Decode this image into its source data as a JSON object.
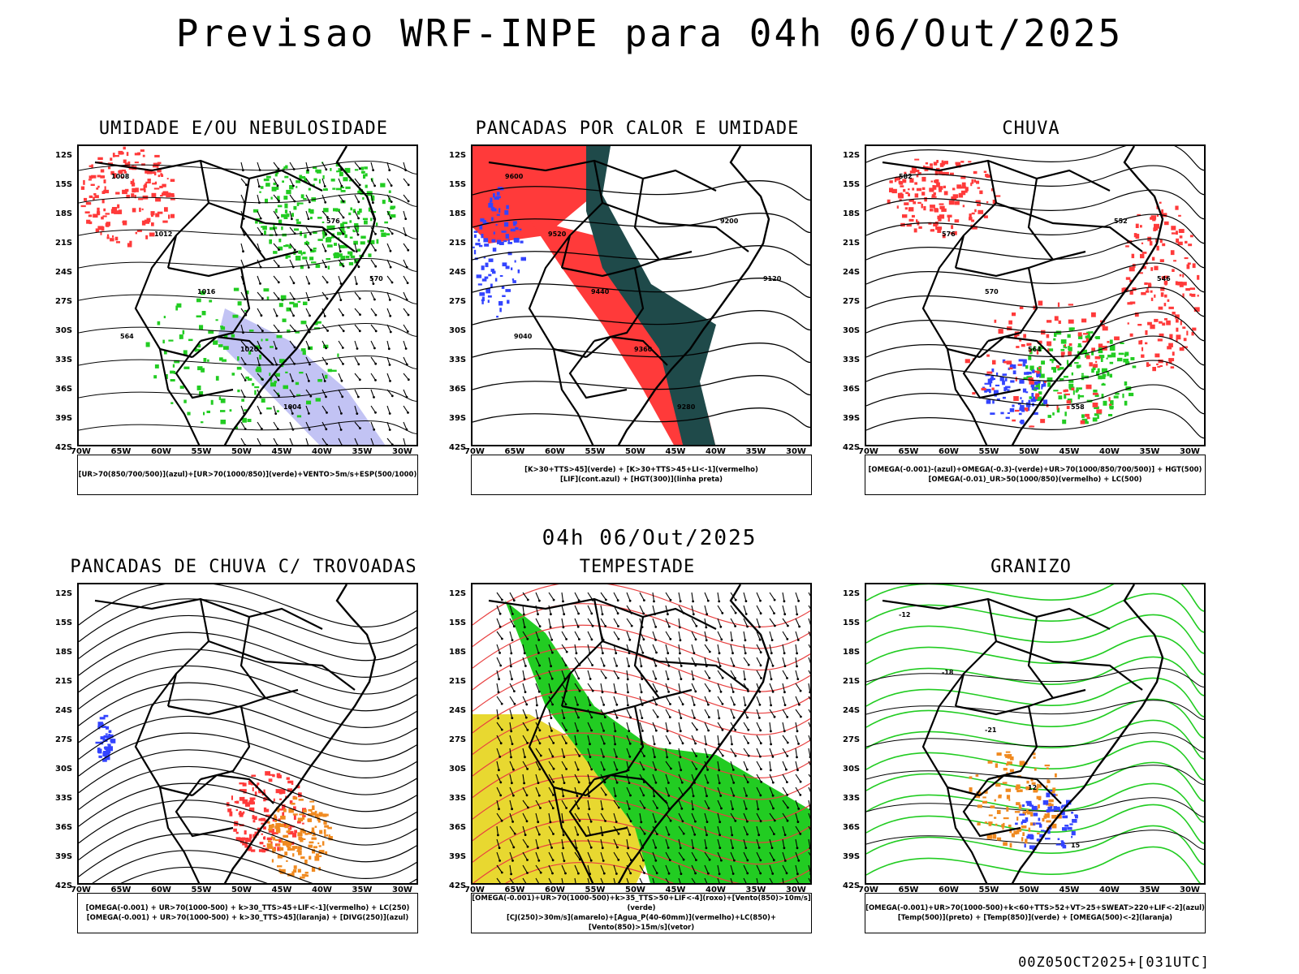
{
  "header": {
    "title": "Previsao WRF-INPE  para 04h 06/Out/2025"
  },
  "mid_time": "04h 06/Out/2025",
  "footer": "00Z05OCT2025+[031UTC]",
  "axes": {
    "lat_labels": [
      "12S",
      "15S",
      "18S",
      "21S",
      "24S",
      "27S",
      "30S",
      "33S",
      "36S",
      "39S",
      "42S"
    ],
    "lon_labels": [
      "70W",
      "65W",
      "60W",
      "55W",
      "50W",
      "45W",
      "40W",
      "35W",
      "30W"
    ]
  },
  "colors": {
    "red": "#ff3a3a",
    "green": "#22cc22",
    "blue": "#3344ff",
    "teal": "#1f4a4a",
    "yellow": "#e8d830",
    "orange": "#f08a20",
    "lightblue": "#b7b9f2"
  },
  "panels": [
    {
      "title": "UMIDADE E/OU NEBULOSIDADE",
      "legend": [
        "[UR>70(850/700/500)](azul)+[UR>70(1000/850)](verde)+VENTO>5m/s+ESP(500/1000)"
      ],
      "contour_labels": [
        "1008",
        "1012",
        "1016",
        "1020",
        "1004",
        "576",
        "570",
        "564"
      ]
    },
    {
      "title": "PANCADAS POR CALOR E UMIDADE",
      "legend": [
        "[K>30+TTS>45](verde)  +  [K>30+TTS>45+LI<-1](vermelho)",
        "[LIF](cont.azul)  +  [HGT(300)](linha preta)"
      ],
      "contour_labels": [
        "9600",
        "9520",
        "9440",
        "9360",
        "9280",
        "9200",
        "9120",
        "9040"
      ]
    },
    {
      "title": "CHUVA",
      "legend": [
        "[OMEGA(-0.001)-(azul)+OMEGA(-0.3)-(verde)+UR>70(1000/850/700/500)]  +  HGT(500)",
        "[OMEGA(-0.01)_UR>50(1000/850)(vermelho)  +  LC(500)"
      ],
      "contour_labels": [
        "582",
        "576",
        "570",
        "564",
        "558",
        "552",
        "546"
      ]
    },
    {
      "title": "PANCADAS DE CHUVA C/ TROVOADAS",
      "legend": [
        "[OMEGA(-0.001)  +  UR>70(1000-500)  +  k>30_TTS>45+LIF<-1](vermelho)  +  LC(250)",
        "[OMEGA(-0.001)  +  UR>70(1000-500)  +  k>30_TTS>45](laranja)  +  [DIVG(250)](azul)"
      ],
      "contour_labels": []
    },
    {
      "title": "TEMPESTADE",
      "legend": [
        "[OMEGA(-0.001)+UR>70(1000-500)+k>35_TTS>50+LIF<-4](roxo)+[Vento(850)>10m/s](verde)",
        "[CJ(250)>30m/s](amarelo)+[Agua_P(40-60mm)](vermelho)+LC(850)+[Vento(850)>15m/s](vetor)"
      ],
      "contour_labels": []
    },
    {
      "title": "GRANIZO",
      "legend": [
        "[OMEGA(-0.001)+UR>70(1000-500)+k<60+TTS>52+VT>25+SWEAT>220+LIF<-2](azul)",
        "[Temp(500)](preto)  +  [Temp(850)](verde)  +  [OMEGA(500)<-2](laranja)"
      ],
      "contour_labels": [
        "-12",
        "-18",
        "-21",
        "12",
        "15"
      ]
    }
  ]
}
